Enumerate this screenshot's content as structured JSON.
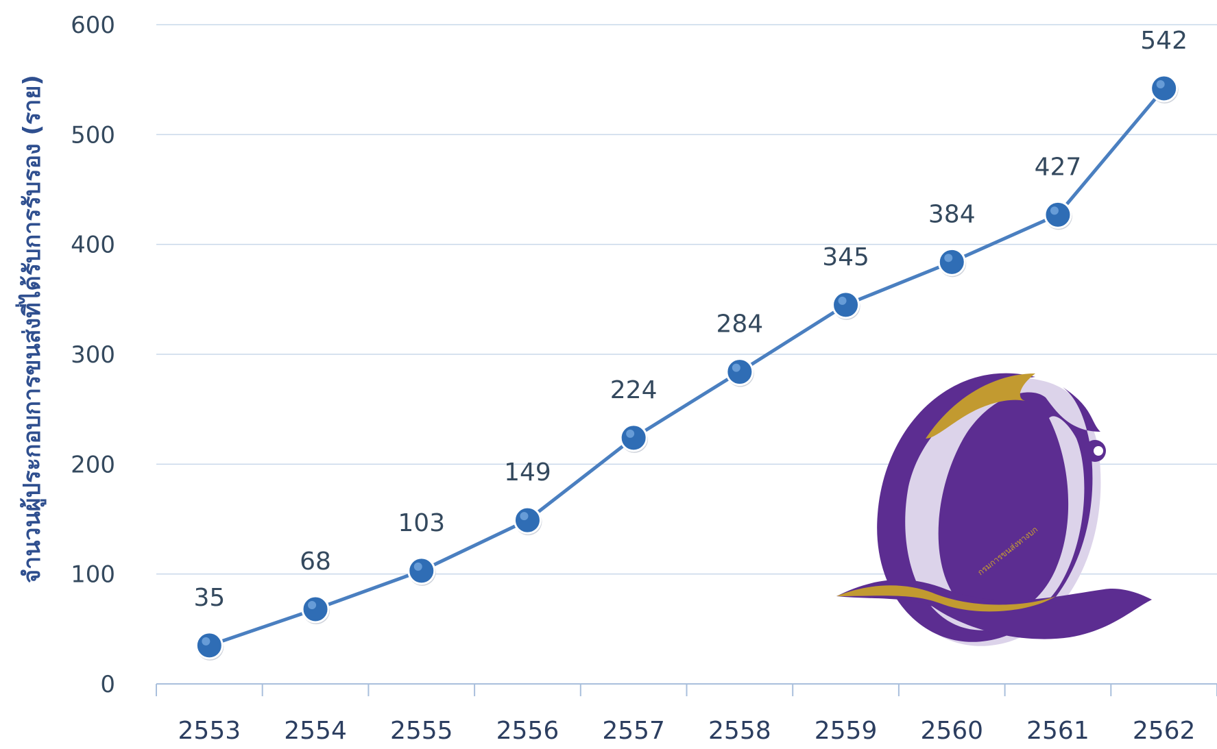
{
  "chart_data": {
    "type": "line",
    "title": "",
    "xlabel": "",
    "ylabel": "จำนวนผู้ประกอบการขนส่งที่ได้รับการรับรอง (ราย)",
    "categories": [
      "2553",
      "2554",
      "2555",
      "2556",
      "2557",
      "2558",
      "2559",
      "2560",
      "2561",
      "2562"
    ],
    "series": [
      {
        "values": [
          35,
          68,
          103,
          149,
          224,
          284,
          345,
          384,
          427,
          542
        ]
      }
    ],
    "data_labels": [
      "35",
      "68",
      "103",
      "149",
      "224",
      "284",
      "345",
      "384",
      "427",
      "542"
    ],
    "y_ticks": [
      "0",
      "100",
      "200",
      "300",
      "400",
      "500",
      "600"
    ],
    "ylim": [
      0,
      600
    ],
    "grid": true,
    "legend": "none",
    "colors": {
      "line": "#4a7fc0",
      "marker": "#2f6db5",
      "grid": "#c9d8ea",
      "axis": "#a9bfdc"
    }
  },
  "logo": {
    "icon": "dlt-q-logo",
    "text": "กรมการขนส่งทางบก",
    "colors": {
      "purple": "#5c2d91",
      "gold": "#c29a30",
      "shadow": "#d9cfe8"
    }
  }
}
